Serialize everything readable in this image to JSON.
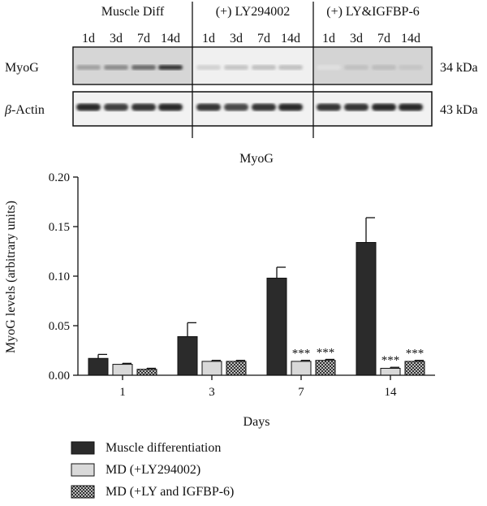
{
  "blot": {
    "group_labels": [
      "Muscle Diff",
      "(+) LY294002",
      "(+) LY&IGFBP-6"
    ],
    "lane_labels": [
      "1d",
      "3d",
      "7d",
      "14d"
    ],
    "row_labels": [
      "MyoG",
      "-Actin"
    ],
    "row_label_prefix": "β",
    "weights": [
      "34 kDa",
      "43 kDa"
    ],
    "band_intensity": {
      "MyoG": [
        [
          0.35,
          0.45,
          0.6,
          0.85
        ],
        [
          0.12,
          0.18,
          0.2,
          0.2
        ],
        [
          0.05,
          0.2,
          0.22,
          0.18
        ]
      ],
      "Actin": [
        [
          0.9,
          0.8,
          0.85,
          0.9
        ],
        [
          0.85,
          0.75,
          0.85,
          0.9
        ],
        [
          0.85,
          0.85,
          0.9,
          0.9
        ]
      ]
    }
  },
  "chart_data": {
    "type": "bar",
    "title": "MyoG",
    "xlabel": "Days",
    "ylabel": "MyoG levels (arbitrary units)",
    "categories": [
      "1",
      "3",
      "7",
      "14"
    ],
    "ylim": [
      0,
      0.2
    ],
    "yticks": [
      "0.00",
      "0.05",
      "0.10",
      "0.15",
      "0.20"
    ],
    "series": [
      {
        "name": "Muscle differentiation",
        "values": [
          0.017,
          0.039,
          0.098,
          0.134
        ],
        "errors": [
          0.004,
          0.014,
          0.011,
          0.025
        ],
        "color": "#2b2b2b"
      },
      {
        "name": "MD (+LY294002)",
        "values": [
          0.011,
          0.014,
          0.014,
          0.007
        ],
        "errors": [
          0.001,
          0.001,
          0.001,
          0.001
        ],
        "color": "#d9d9d9"
      },
      {
        "name": "MD (+LY and IGFBP-6)",
        "values": [
          0.006,
          0.014,
          0.015,
          0.014
        ],
        "errors": [
          0.001,
          0.001,
          0.001,
          0.001
        ],
        "color": "#8a8a8a"
      }
    ],
    "annotations": [
      {
        "category": "7",
        "series": 1,
        "text": "***"
      },
      {
        "category": "7",
        "series": 2,
        "text": "***"
      },
      {
        "category": "14",
        "series": 1,
        "text": "***"
      },
      {
        "category": "14",
        "series": 2,
        "text": "***"
      }
    ],
    "legend_position": "bottom-left",
    "grid": false
  }
}
